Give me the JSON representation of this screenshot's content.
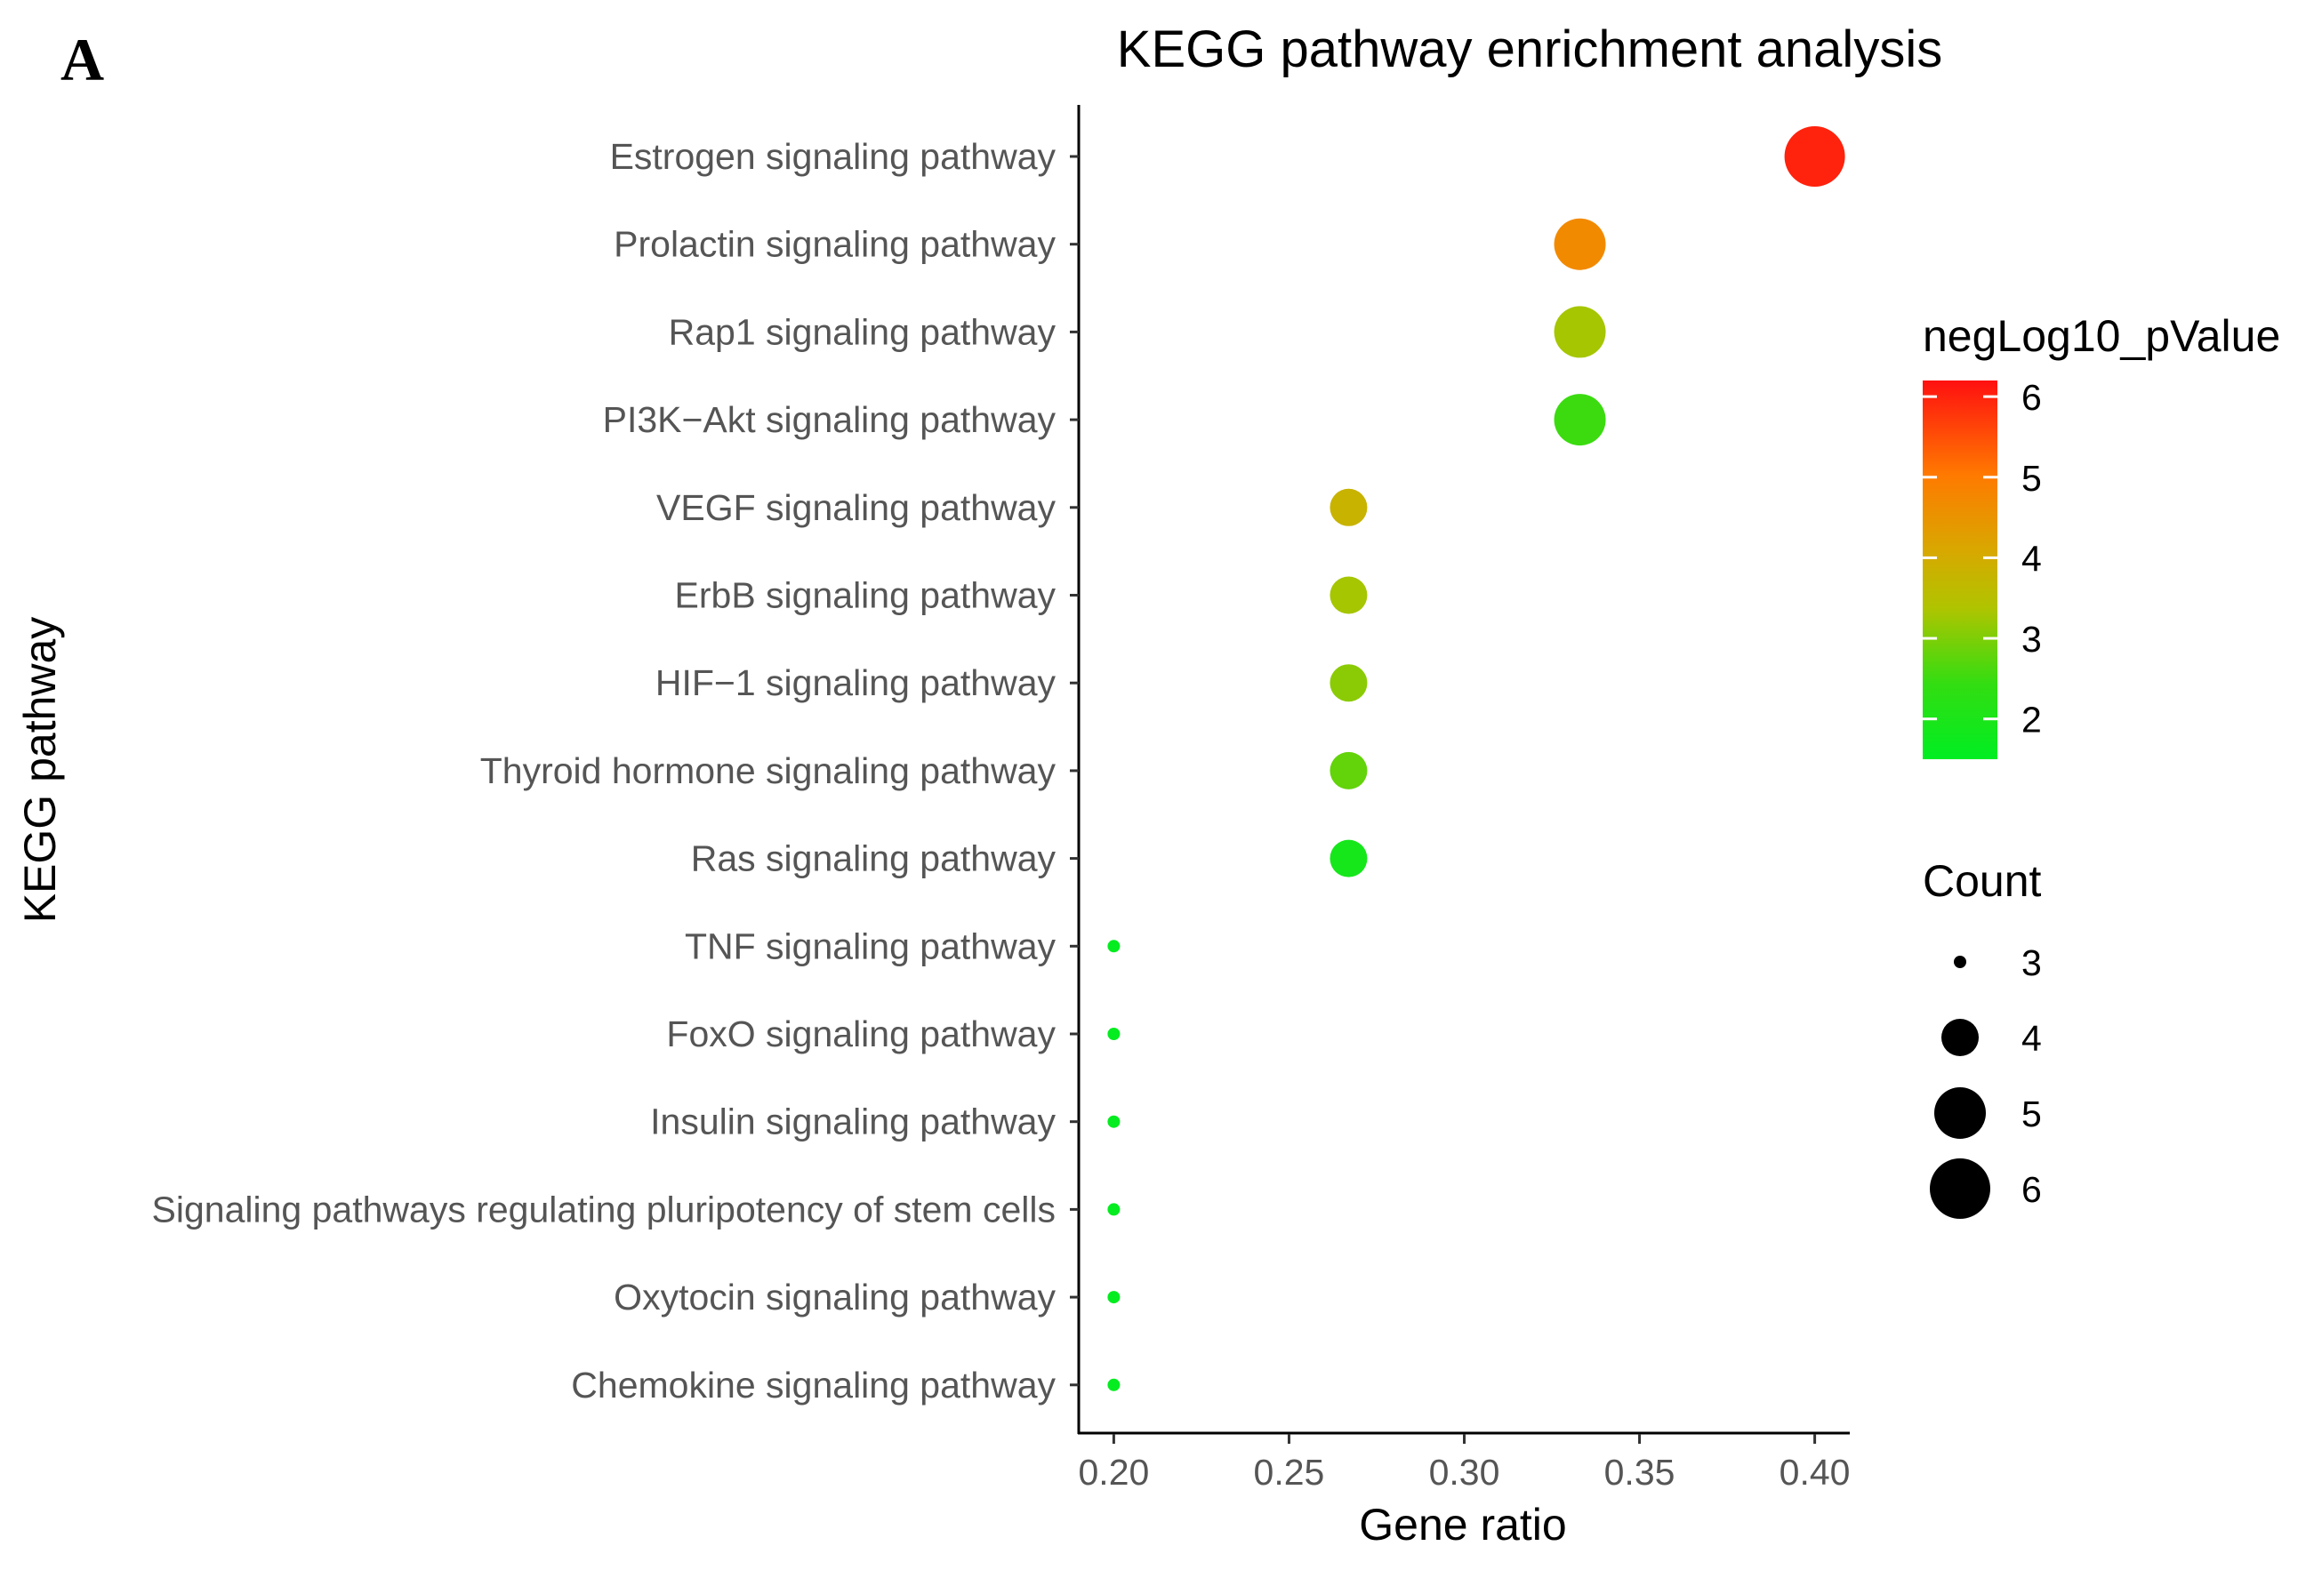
{
  "panel_label": "A",
  "chart_data": {
    "type": "scatter",
    "title": "KEGG pathway enrichment analysis",
    "xlabel": "Gene ratio",
    "ylabel": "KEGG pathway",
    "xlim": [
      0.19,
      0.41
    ],
    "xticks": [
      0.2,
      0.25,
      0.3,
      0.35,
      0.4
    ],
    "xtick_labels": [
      "0.20",
      "0.25",
      "0.30",
      "0.35",
      "0.40"
    ],
    "grid": false,
    "points": [
      {
        "pathway": "Estrogen signaling pathway",
        "gene_ratio": 0.4,
        "count": 6,
        "negLog10_pValue": 6.0
      },
      {
        "pathway": "Prolactin signaling pathway",
        "gene_ratio": 0.333,
        "count": 5,
        "negLog10_pValue": 4.7
      },
      {
        "pathway": "Rap1 signaling pathway",
        "gene_ratio": 0.333,
        "count": 5,
        "negLog10_pValue": 3.3
      },
      {
        "pathway": "PI3K−Akt signaling pathway",
        "gene_ratio": 0.333,
        "count": 5,
        "negLog10_pValue": 2.5
      },
      {
        "pathway": "VEGF signaling pathway",
        "gene_ratio": 0.267,
        "count": 4,
        "negLog10_pValue": 3.8
      },
      {
        "pathway": "ErbB signaling pathway",
        "gene_ratio": 0.267,
        "count": 4,
        "negLog10_pValue": 3.3
      },
      {
        "pathway": "HIF−1 signaling pathway",
        "gene_ratio": 0.267,
        "count": 4,
        "negLog10_pValue": 3.1
      },
      {
        "pathway": "Thyroid hormone signaling pathway",
        "gene_ratio": 0.267,
        "count": 4,
        "negLog10_pValue": 2.8
      },
      {
        "pathway": "Ras signaling pathway",
        "gene_ratio": 0.267,
        "count": 4,
        "negLog10_pValue": 1.9
      },
      {
        "pathway": "TNF signaling pathway",
        "gene_ratio": 0.2,
        "count": 3,
        "negLog10_pValue": 1.6
      },
      {
        "pathway": "FoxO signaling pathway",
        "gene_ratio": 0.2,
        "count": 3,
        "negLog10_pValue": 1.6
      },
      {
        "pathway": "Insulin signaling pathway",
        "gene_ratio": 0.2,
        "count": 3,
        "negLog10_pValue": 1.6
      },
      {
        "pathway": "Signaling pathways regulating pluripotency of stem cells",
        "gene_ratio": 0.2,
        "count": 3,
        "negLog10_pValue": 1.6
      },
      {
        "pathway": "Oxytocin signaling pathway",
        "gene_ratio": 0.2,
        "count": 3,
        "negLog10_pValue": 1.6
      },
      {
        "pathway": "Chemokine signaling pathway",
        "gene_ratio": 0.2,
        "count": 3,
        "negLog10_pValue": 1.6
      }
    ],
    "color_legend": {
      "title": "negLog10_pValue",
      "range": [
        1.5,
        6.2
      ],
      "ticks": [
        2,
        3,
        4,
        5,
        6
      ],
      "tick_labels": [
        "2",
        "3",
        "4",
        "5",
        "6"
      ],
      "low_color": "#00ee22",
      "mid_color": "#c8b400",
      "high_color": "#ff1010"
    },
    "size_legend": {
      "title": "Count",
      "values": [
        3,
        4,
        5,
        6
      ],
      "labels": [
        "3",
        "4",
        "5",
        "6"
      ]
    }
  }
}
